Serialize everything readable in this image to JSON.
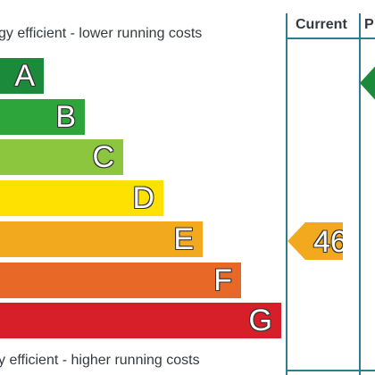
{
  "header": {
    "top_caption": "gy efficient - lower running costs",
    "current_label": "Current",
    "potential_label": "P"
  },
  "bands": [
    {
      "letter": "A",
      "color": "#1c8a3b"
    },
    {
      "letter": "B",
      "color": "#2da53a"
    },
    {
      "letter": "C",
      "color": "#8cc63f"
    },
    {
      "letter": "D",
      "color": "#ffe100"
    },
    {
      "letter": "E",
      "color": "#f3a91d"
    },
    {
      "letter": "F",
      "color": "#e86828"
    },
    {
      "letter": "G",
      "color": "#d71f2a"
    }
  ],
  "current": {
    "value": "46",
    "color": "#f3a91d"
  },
  "potential": {
    "color": "#1c8a3b"
  },
  "footer": {
    "bottom_caption": "y efficient - higher running costs"
  },
  "colors": {
    "border": "#2f7c8e",
    "text": "#333a3f"
  }
}
